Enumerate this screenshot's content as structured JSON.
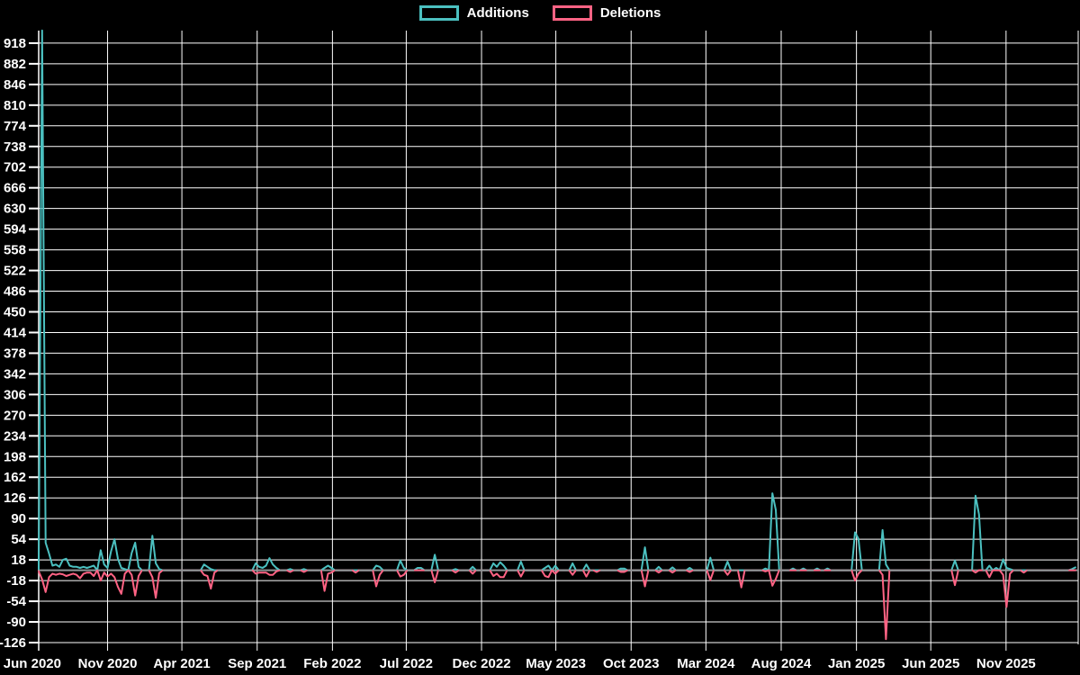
{
  "app": {
    "background": "#000000",
    "text_color": "#ffffff"
  },
  "legend": {
    "items": [
      {
        "label": "Additions",
        "color": "#4bc0c0"
      },
      {
        "label": "Deletions",
        "color": "#ff6384"
      }
    ]
  },
  "chart_data": {
    "type": "line",
    "title": "",
    "xlabel": "",
    "ylabel": "",
    "legend_position": "top-center",
    "grid": {
      "on": true,
      "color": "#ffffff",
      "zero_line_color": "#8f9596"
    },
    "x_axis": {
      "unit": "week",
      "start_week": "2020-06-14",
      "week_count": 302,
      "tick_labels": [
        "Jun 2020",
        "Nov 2020",
        "Apr 2021",
        "Sep 2021",
        "Feb 2022",
        "Jul 2022",
        "Dec 2022",
        "May 2023",
        "Oct 2023",
        "Mar 2024",
        "Aug 2024",
        "Jan 2025",
        "Jun 2025",
        "Nov 2025"
      ],
      "tick_dates": [
        "2020-06-01",
        "2020-11-01",
        "2021-04-01",
        "2021-09-01",
        "2022-02-01",
        "2022-07-01",
        "2022-12-01",
        "2023-05-01",
        "2023-10-01",
        "2024-03-01",
        "2024-08-01",
        "2025-01-01",
        "2025-06-01",
        "2025-11-01"
      ]
    },
    "y_axis": {
      "min": -126,
      "max": 954,
      "tick_step": 36,
      "tick_values": [
        918,
        882,
        846,
        810,
        774,
        738,
        702,
        666,
        630,
        594,
        558,
        522,
        486,
        450,
        414,
        378,
        342,
        306,
        270,
        234,
        198,
        162,
        126,
        90,
        54,
        18,
        -18,
        -54,
        -90,
        -126
      ]
    },
    "series": [
      {
        "name": "Additions",
        "color": "#4bc0c0",
        "default_value": 0,
        "points": {
          "0": 2,
          "1": 940,
          "2": 48,
          "3": 29,
          "4": 8,
          "5": 10,
          "6": 6,
          "7": 18,
          "8": 20,
          "9": 8,
          "10": 6,
          "11": 6,
          "12": 4,
          "13": 6,
          "14": 4,
          "15": 6,
          "16": 8,
          "18": 35,
          "19": 10,
          "20": 4,
          "21": 33,
          "22": 54,
          "23": 20,
          "24": 4,
          "25": 2,
          "27": 30,
          "28": 48,
          "29": 6,
          "33": 60,
          "34": 12,
          "35": 2,
          "48": 10,
          "49": 6,
          "50": 2,
          "63": 12,
          "64": 6,
          "65": 4,
          "66": 8,
          "67": 21,
          "68": 10,
          "69": 4,
          "73": 2,
          "77": 2,
          "83": 4,
          "84": 8,
          "85": 4,
          "98": 8,
          "99": 6,
          "105": 17,
          "106": 4,
          "110": 4,
          "111": 4,
          "115": 27,
          "121": 2,
          "126": 6,
          "132": 12,
          "133": 6,
          "134": 14,
          "135": 8,
          "140": 15,
          "147": 4,
          "148": 8,
          "150": 8,
          "155": 12,
          "159": 10,
          "169": 3,
          "170": 3,
          "176": 40,
          "180": 6,
          "184": 5,
          "189": 4,
          "195": 22,
          "200": 15,
          "211": 3,
          "213": 134,
          "214": 105,
          "219": 3,
          "222": 3,
          "226": 3,
          "229": 3,
          "237": 66,
          "238": 55,
          "245": 70,
          "246": 10,
          "266": 17,
          "272": 130,
          "273": 97,
          "276": 8,
          "278": 4,
          "280": 19,
          "281": 4,
          "282": 2,
          "300": 2,
          "301": 5
        }
      },
      {
        "name": "Deletions",
        "color": "#ff6384",
        "default_value": 0,
        "points": {
          "0": -2,
          "1": -16,
          "2": -38,
          "3": -12,
          "4": -6,
          "5": -8,
          "6": -6,
          "7": -7,
          "8": -10,
          "9": -8,
          "10": -6,
          "11": -8,
          "12": -14,
          "13": -6,
          "14": -4,
          "15": -4,
          "16": -10,
          "18": -18,
          "19": -4,
          "20": -11,
          "21": -6,
          "22": -12,
          "23": -29,
          "24": -41,
          "25": -6,
          "27": -8,
          "28": -44,
          "29": -10,
          "33": -12,
          "34": -48,
          "35": -5,
          "48": -8,
          "49": -10,
          "50": -32,
          "51": -4,
          "63": -6,
          "64": -4,
          "65": -4,
          "66": -4,
          "67": -8,
          "68": -8,
          "69": -2,
          "73": -3,
          "77": -3,
          "83": -36,
          "84": -6,
          "85": -4,
          "92": -4,
          "98": -28,
          "99": -8,
          "105": -11,
          "106": -8,
          "115": -21,
          "121": -4,
          "126": -6,
          "132": -10,
          "133": -6,
          "134": -12,
          "135": -12,
          "140": -11,
          "147": -10,
          "148": -12,
          "150": -6,
          "155": -8,
          "159": -11,
          "162": -3,
          "169": -3,
          "170": -3,
          "176": -28,
          "180": -4,
          "184": -4,
          "189": -3,
          "195": -17,
          "200": -8,
          "204": -30,
          "211": -2,
          "213": -27,
          "214": -15,
          "237": -18,
          "238": -6,
          "245": -8,
          "246": -120,
          "266": -26,
          "272": -4,
          "276": -12,
          "280": -8,
          "281": -64,
          "282": -6,
          "286": -4
        }
      }
    ]
  }
}
